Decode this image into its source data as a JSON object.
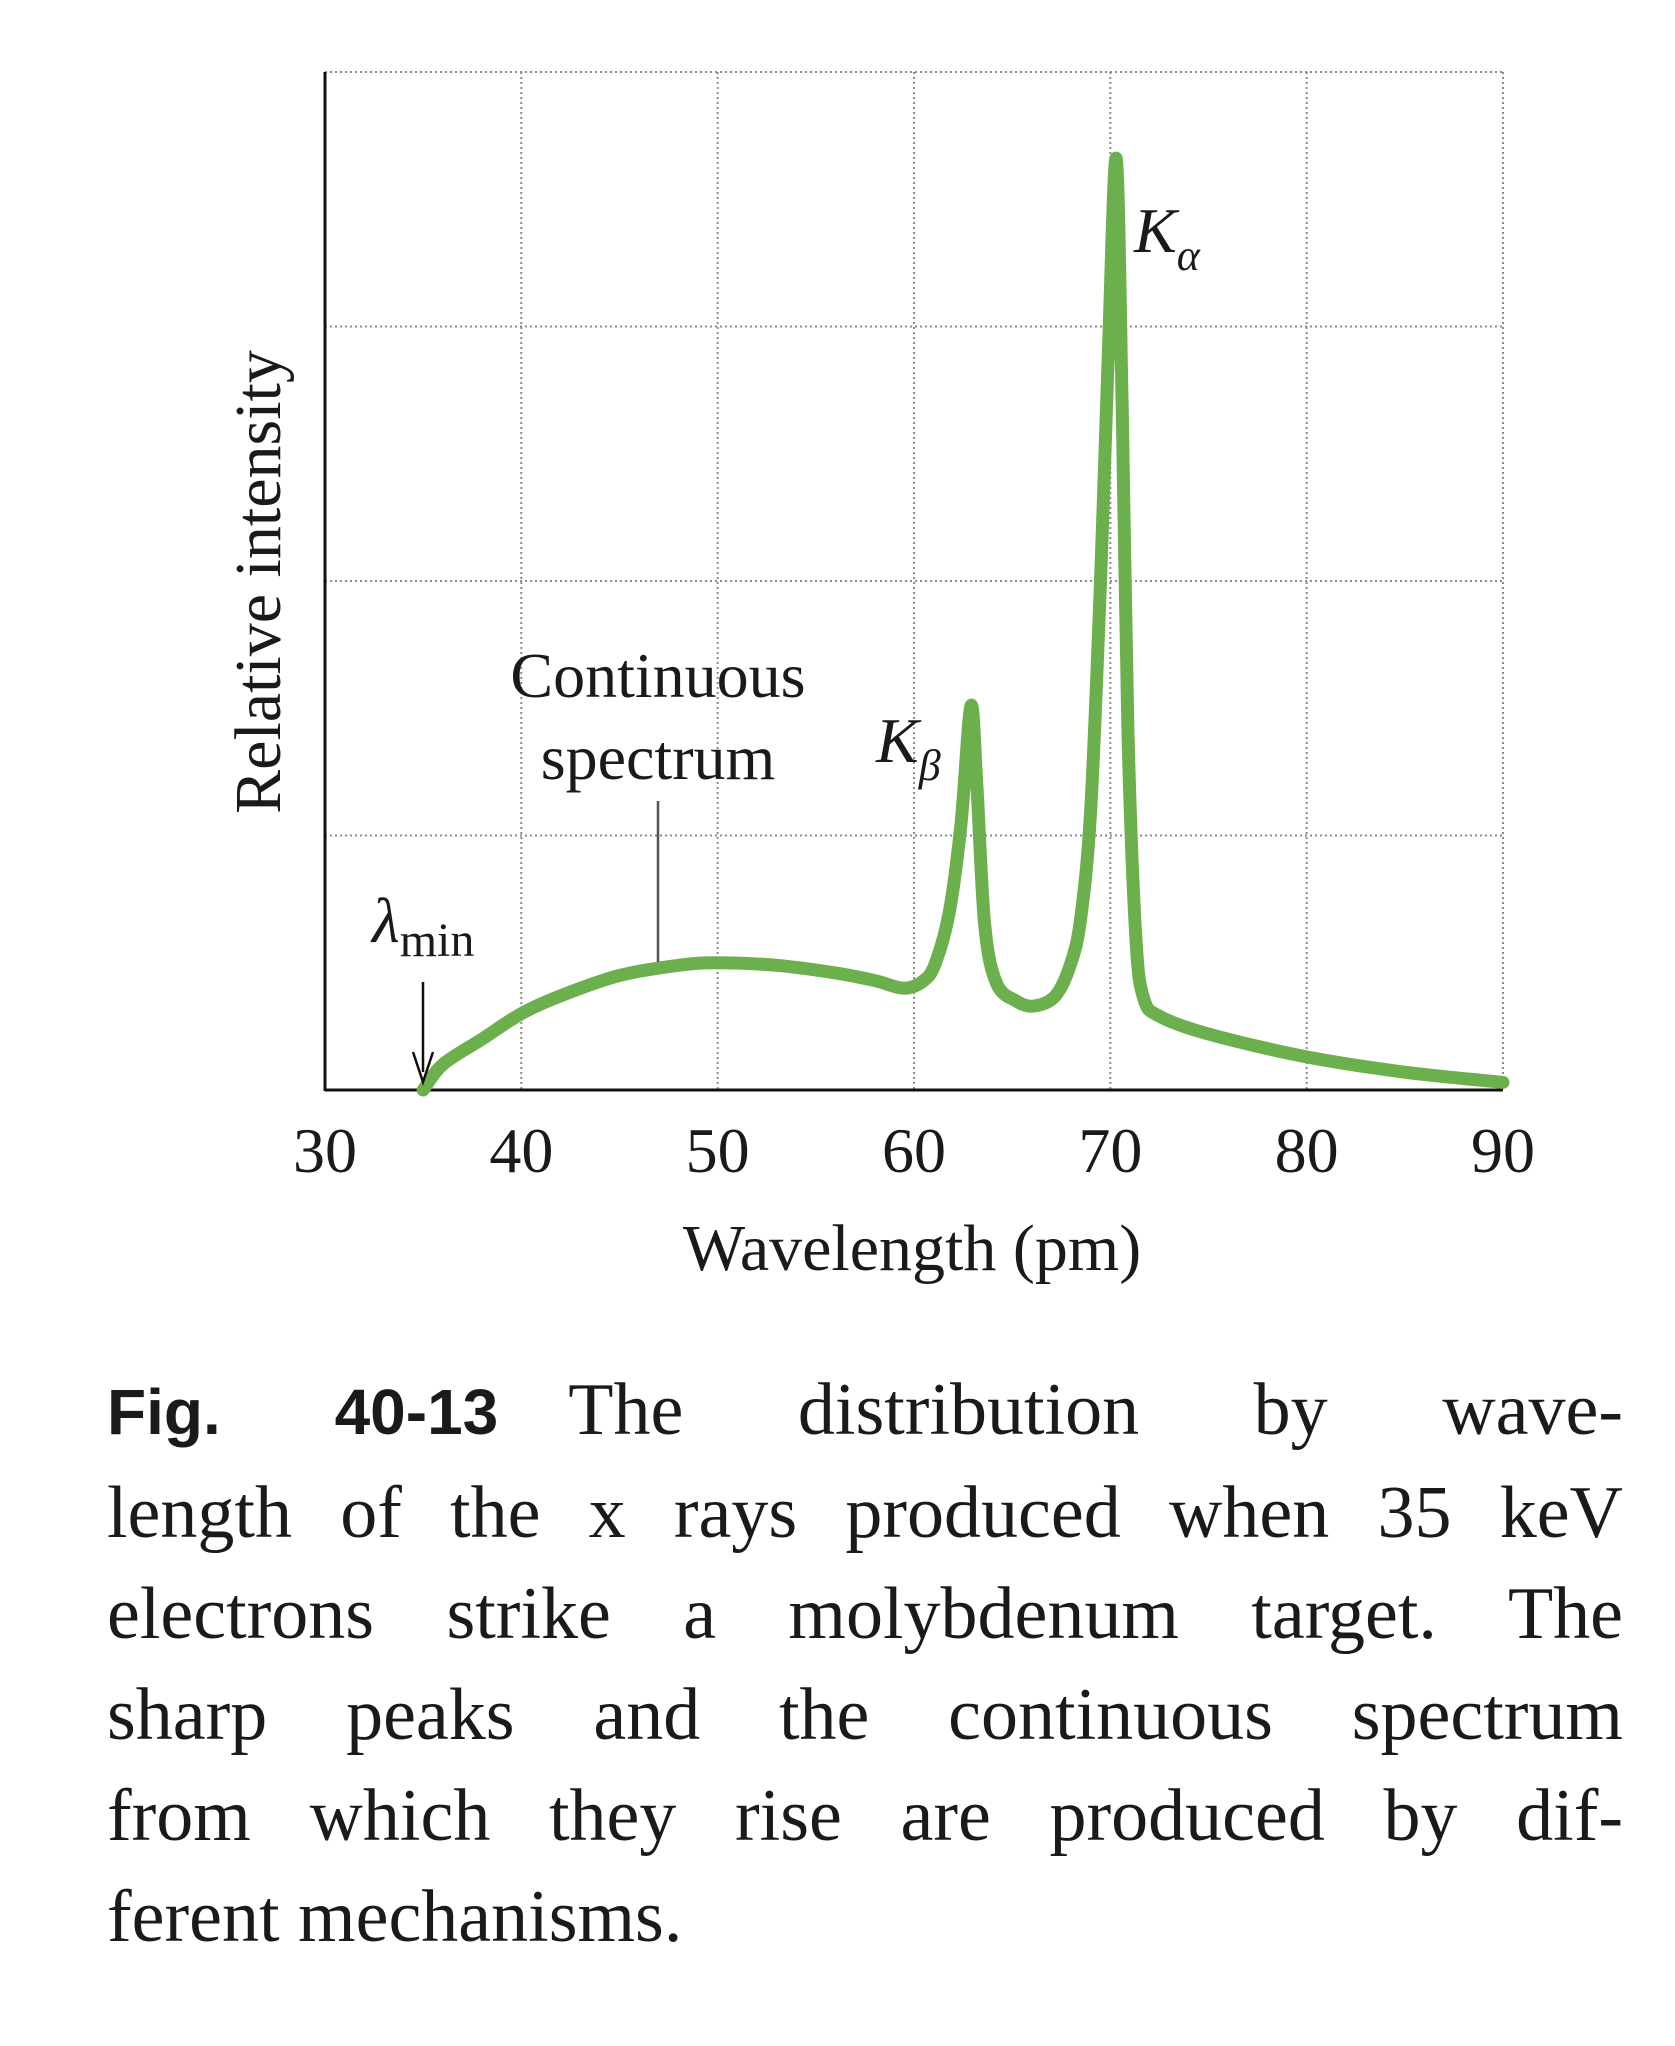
{
  "chart_data": {
    "type": "line",
    "xlabel": "Wavelength (pm)",
    "ylabel": "Relative intensity",
    "xlim": [
      30,
      90
    ],
    "ylim": [
      0,
      4
    ],
    "xticks": [
      "30",
      "40",
      "50",
      "60",
      "70",
      "80",
      "90"
    ],
    "y_tick_labels_shown": false,
    "grid": true,
    "line_color": "#6cb04e",
    "x": [
      35,
      36,
      38,
      40,
      42,
      45,
      48,
      50,
      53,
      56,
      58,
      59.5,
      60.5,
      61.1,
      61.8,
      62.4,
      62.9,
      63.2,
      63.6,
      64.2,
      65.2,
      66.1,
      67.2,
      68,
      68.5,
      69,
      69.5,
      69.9,
      70.3,
      70.6,
      70.9,
      71.3,
      71.7,
      72.5,
      75,
      80,
      85,
      90
    ],
    "y": [
      0,
      0.1,
      0.2,
      0.3,
      0.37,
      0.45,
      0.49,
      0.5,
      0.49,
      0.46,
      0.43,
      0.4,
      0.43,
      0.5,
      0.7,
      1.05,
      1.51,
      1.2,
      0.65,
      0.42,
      0.35,
      0.33,
      0.37,
      0.5,
      0.68,
      1.1,
      2.0,
      2.9,
      3.66,
      2.7,
      1.4,
      0.6,
      0.36,
      0.29,
      0.22,
      0.13,
      0.07,
      0.03
    ],
    "annotations": {
      "continuous": "Continuous",
      "spectrum": "spectrum",
      "k_beta": "K",
      "k_beta_sub": "β",
      "k_alpha": "K",
      "k_alpha_sub": "α",
      "lambda_min": "λ",
      "lambda_min_sub": "min"
    }
  },
  "caption": {
    "label": "Fig. 40-13",
    "lines": [
      "The distribution by wave-",
      "length of the x rays produced when 35 keV",
      "electrons strike a molybdenum target. The",
      "sharp peaks and the continuous spectrum",
      "from which they rise are produced by dif-",
      "ferent mechanisms."
    ]
  }
}
